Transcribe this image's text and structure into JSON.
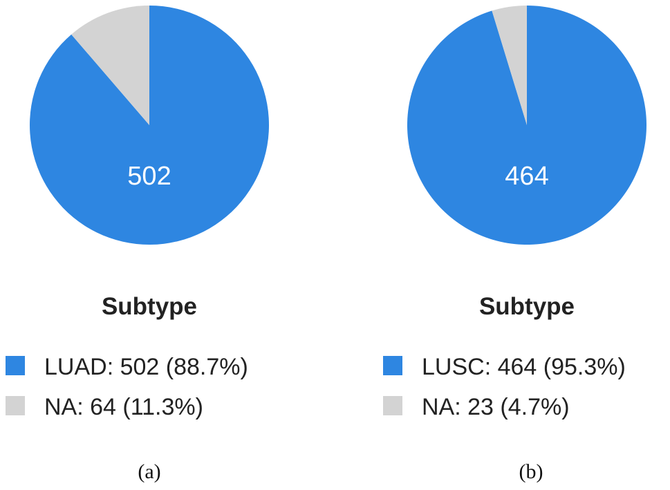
{
  "colors": {
    "primary": "#2E86E1",
    "na": "#D3D3D3"
  },
  "chart_data": [
    {
      "type": "pie",
      "panel_label": "(a)",
      "legend_title": "Subtype",
      "slices": [
        {
          "name": "LUAD",
          "value": 502,
          "percent": 88.7,
          "legend": "LUAD: 502 (88.7%)",
          "label": "502",
          "color": "#2E86E1"
        },
        {
          "name": "NA",
          "value": 64,
          "percent": 11.3,
          "legend": "NA: 64 (11.3%)",
          "label": "",
          "color": "#D3D3D3"
        }
      ]
    },
    {
      "type": "pie",
      "panel_label": "(b)",
      "legend_title": "Subtype",
      "slices": [
        {
          "name": "LUSC",
          "value": 464,
          "percent": 95.3,
          "legend": "LUSC: 464 (95.3%)",
          "label": "464",
          "color": "#2E86E1"
        },
        {
          "name": "NA",
          "value": 23,
          "percent": 4.7,
          "legend": "NA: 23 (4.7%)",
          "label": "",
          "color": "#D3D3D3"
        }
      ]
    }
  ]
}
